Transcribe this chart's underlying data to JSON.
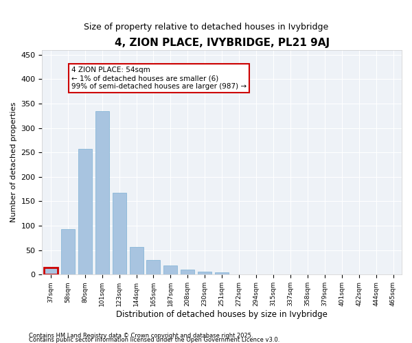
{
  "title": "4, ZION PLACE, IVYBRIDGE, PL21 9AJ",
  "subtitle": "Size of property relative to detached houses in Ivybridge",
  "xlabel": "Distribution of detached houses by size in Ivybridge",
  "ylabel": "Number of detached properties",
  "bar_color": "#a8c4e0",
  "bar_edge_color": "#7aafd4",
  "background_color": "#eef2f7",
  "annotation_box_color": "#cc0000",
  "annotation_text": "4 ZION PLACE: 54sqm\n← 1% of detached houses are smaller (6)\n99% of semi-detached houses are larger (987) →",
  "footer1": "Contains HM Land Registry data © Crown copyright and database right 2025.",
  "footer2": "Contains public sector information licensed under the Open Government Licence v3.0.",
  "bins": [
    "37sqm",
    "58sqm",
    "80sqm",
    "101sqm",
    "123sqm",
    "144sqm",
    "165sqm",
    "187sqm",
    "208sqm",
    "230sqm",
    "251sqm",
    "272sqm",
    "294sqm",
    "315sqm",
    "337sqm",
    "358sqm",
    "379sqm",
    "401sqm",
    "422sqm",
    "444sqm",
    "465sqm"
  ],
  "values": [
    15,
    93,
    257,
    335,
    168,
    57,
    30,
    19,
    11,
    6,
    4,
    1,
    1,
    0,
    0,
    0,
    0,
    0,
    0,
    0,
    0
  ],
  "property_bin_index": 0,
  "ylim": [
    0,
    460
  ],
  "yticks": [
    0,
    50,
    100,
    150,
    200,
    250,
    300,
    350,
    400,
    450
  ]
}
